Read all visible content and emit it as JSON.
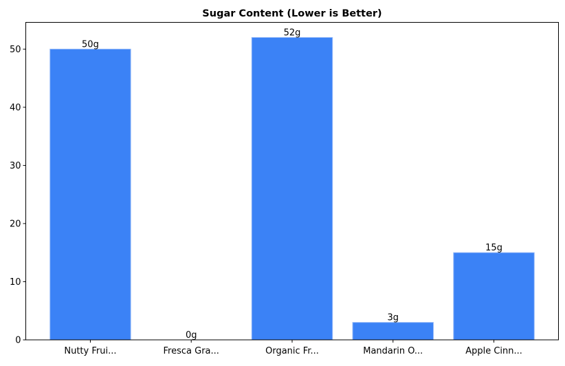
{
  "chart_data": {
    "type": "bar",
    "title": "Sugar Content (Lower is Better)",
    "xlabel": "",
    "ylabel": "",
    "categories": [
      "Nutty Frui...",
      "Fresca Gra...",
      "Organic Fr...",
      "Mandarin O...",
      "Apple Cinn..."
    ],
    "values": [
      50,
      0,
      52,
      3,
      15
    ],
    "data_labels": [
      "50g",
      "0g",
      "52g",
      "3g",
      "15g"
    ],
    "ylim": [
      0,
      54.6
    ],
    "yticks": [
      0,
      10,
      20,
      30,
      40,
      50
    ],
    "grid": false,
    "bar_color": "#3b82f6",
    "bar_edge_color": "#93b8f8"
  }
}
